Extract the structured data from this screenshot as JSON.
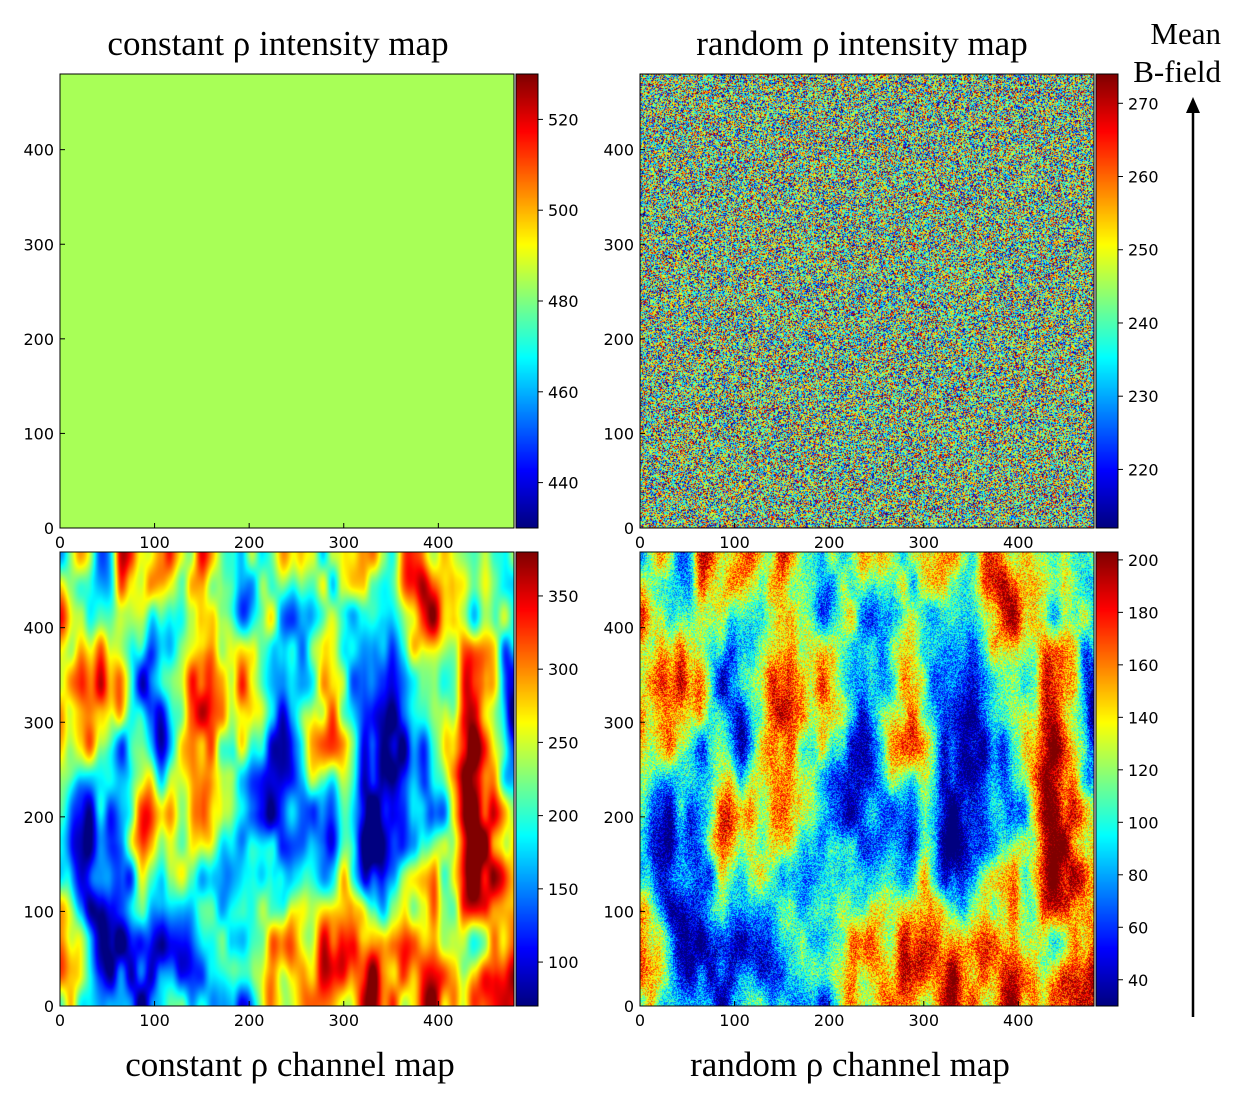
{
  "figure": {
    "side_label": [
      "Mean",
      "B-field"
    ],
    "bottom_titles": [
      "constant ρ channel map",
      "random ρ channel map"
    ]
  },
  "colors": {
    "background": "#ffffff",
    "text": "#000000"
  },
  "chart_data": [
    {
      "type": "heatmap",
      "title": "constant ρ intensity map",
      "pattern": "uniform",
      "uniform_value": 484,
      "colormap": "jet",
      "x_ticks": [
        0,
        100,
        200,
        300,
        400
      ],
      "y_ticks": [
        0,
        100,
        200,
        300,
        400
      ],
      "xlim": [
        0,
        480
      ],
      "ylim": [
        0,
        480
      ],
      "colorbar": {
        "range": [
          430,
          530
        ],
        "ticks": [
          440,
          460,
          480,
          500,
          520
        ]
      }
    },
    {
      "type": "heatmap",
      "title": "random ρ intensity map",
      "pattern": "white-noise",
      "colormap": "jet",
      "x_ticks": [
        0,
        100,
        200,
        300,
        400
      ],
      "y_ticks": [
        0,
        100,
        200,
        300,
        400
      ],
      "xlim": [
        0,
        480
      ],
      "ylim": [
        0,
        480
      ],
      "colorbar": {
        "range": [
          212,
          274
        ],
        "ticks": [
          220,
          230,
          240,
          250,
          260,
          270
        ]
      }
    },
    {
      "type": "heatmap",
      "title": "constant ρ channel map",
      "pattern": "turbulent-filamentary",
      "colormap": "jet",
      "x_ticks": [
        0,
        100,
        200,
        300,
        400
      ],
      "y_ticks": [
        0,
        100,
        200,
        300,
        400
      ],
      "xlim": [
        0,
        480
      ],
      "ylim": [
        0,
        480
      ],
      "colorbar": {
        "range": [
          70,
          380
        ],
        "ticks": [
          100,
          150,
          200,
          250,
          300,
          350
        ]
      }
    },
    {
      "type": "heatmap",
      "title": "random ρ channel map",
      "pattern": "turbulent-filamentary-noisy",
      "colormap": "jet",
      "x_ticks": [
        0,
        100,
        200,
        300,
        400
      ],
      "y_ticks": [
        0,
        100,
        200,
        300,
        400
      ],
      "xlim": [
        0,
        480
      ],
      "ylim": [
        0,
        480
      ],
      "colorbar": {
        "range": [
          30,
          203
        ],
        "ticks": [
          40,
          60,
          80,
          100,
          120,
          140,
          160,
          180,
          200
        ]
      }
    }
  ]
}
